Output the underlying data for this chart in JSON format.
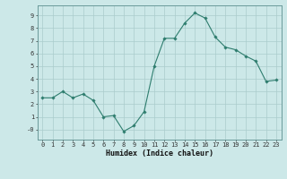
{
  "x": [
    0,
    1,
    2,
    3,
    4,
    5,
    6,
    7,
    8,
    9,
    10,
    11,
    12,
    13,
    14,
    15,
    16,
    17,
    18,
    19,
    20,
    21,
    22,
    23
  ],
  "y": [
    2.5,
    2.5,
    3.0,
    2.5,
    2.8,
    2.3,
    1.0,
    1.1,
    -0.15,
    0.3,
    1.4,
    5.0,
    7.2,
    7.2,
    8.4,
    9.2,
    8.8,
    7.3,
    6.5,
    6.3,
    5.8,
    5.4,
    3.8,
    3.9
  ],
  "line_color": "#2e7d6e",
  "marker": "D",
  "marker_size": 1.8,
  "bg_color": "#cce8e8",
  "grid_color": "#aacccc",
  "xlabel": "Humidex (Indice chaleur)",
  "ylim": [
    -0.8,
    9.8
  ],
  "xlim": [
    -0.5,
    23.5
  ],
  "yticks": [
    0,
    1,
    2,
    3,
    4,
    5,
    6,
    7,
    8,
    9
  ],
  "ytick_labels": [
    "-0",
    "1",
    "2",
    "3",
    "4",
    "5",
    "6",
    "7",
    "8",
    "9"
  ],
  "xticks": [
    0,
    1,
    2,
    3,
    4,
    5,
    6,
    7,
    8,
    9,
    10,
    11,
    12,
    13,
    14,
    15,
    16,
    17,
    18,
    19,
    20,
    21,
    22,
    23
  ],
  "tick_fontsize": 5.0,
  "xlabel_fontsize": 6.0,
  "xlabel_fontweight": "bold"
}
